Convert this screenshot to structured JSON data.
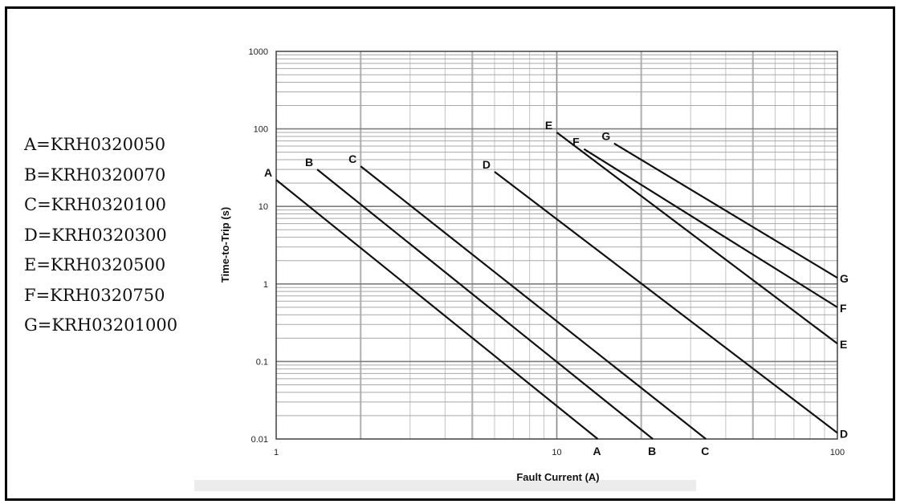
{
  "legend": [
    "A=KRH0320050",
    "B=KRH0320070",
    "C=KRH0320100",
    "D=KRH0320300",
    "E=KRH0320500",
    "F=KRH0320750",
    "G=KRH03201000"
  ],
  "chart_data": {
    "type": "line",
    "xlabel": "Fault Current (A)",
    "ylabel": "Time-to-Trip (s)",
    "xscale": "log",
    "yscale": "log",
    "xlim": [
      1,
      100
    ],
    "ylim": [
      0.01,
      1000
    ],
    "x_ticks": [
      "1",
      "10",
      "100"
    ],
    "y_ticks": [
      "1000",
      "100",
      "10",
      "1",
      "0.1",
      "0.01"
    ],
    "grid": true,
    "series": [
      {
        "name": "A",
        "points": [
          [
            1.0,
            22
          ],
          [
            14.0,
            0.01
          ]
        ],
        "start_label": "A",
        "end_label": "A"
      },
      {
        "name": "B",
        "points": [
          [
            1.4,
            30
          ],
          [
            22.0,
            0.01
          ]
        ],
        "start_label": "B",
        "end_label": "B"
      },
      {
        "name": "C",
        "points": [
          [
            2.0,
            33
          ],
          [
            34.0,
            0.01
          ]
        ],
        "start_label": "C",
        "end_label": "C"
      },
      {
        "name": "D",
        "points": [
          [
            6.0,
            28
          ],
          [
            100,
            0.012
          ]
        ],
        "start_label": "D",
        "end_label": "D"
      },
      {
        "name": "E",
        "points": [
          [
            10.0,
            90
          ],
          [
            100,
            0.17
          ]
        ],
        "start_label": "E",
        "end_label": "E"
      },
      {
        "name": "F",
        "points": [
          [
            12.5,
            55
          ],
          [
            100,
            0.5
          ]
        ],
        "start_label": "F",
        "end_label": "F"
      },
      {
        "name": "G",
        "points": [
          [
            16.0,
            65
          ],
          [
            100,
            1.2
          ]
        ],
        "start_label": "G",
        "end_label": "G"
      }
    ]
  }
}
